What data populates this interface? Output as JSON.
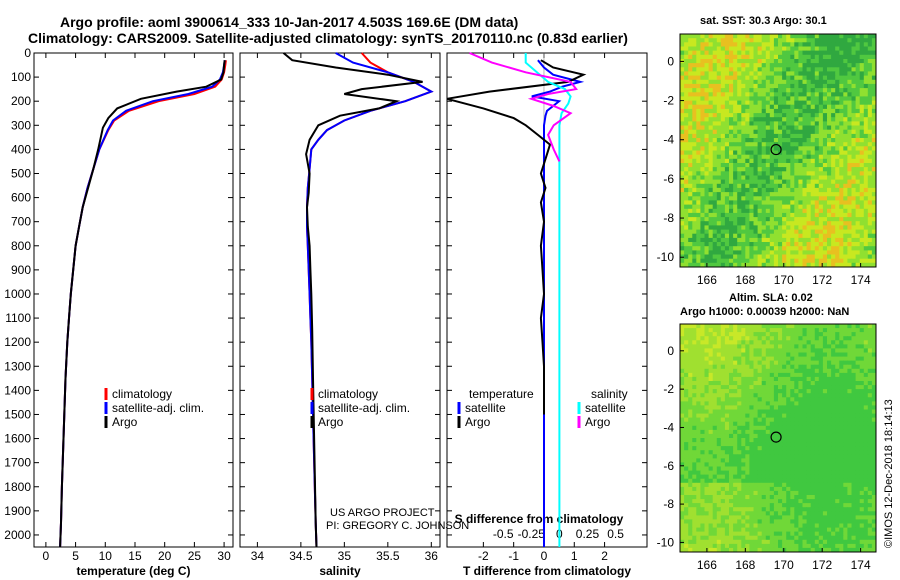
{
  "header": {
    "title_line1": "Argo profile: aoml 3900614_333 10-Jan-2017 4.503S 169.6E (DM data)",
    "title_line2": "Climatology: CARS2009. Satellite-adjusted climatology: synTS_20170110.nc (0.83d earlier)"
  },
  "credits": {
    "line1": "US ARGO PROJECT",
    "line2": "PI: GREGORY C. JOHNSON"
  },
  "imos_note": "©IMOS 12-Dec-2018 18:14:13",
  "colors": {
    "climatology": "#ff0000",
    "satellite": "#0000ff",
    "argo": "#000000",
    "sat_sal": "#00ffff",
    "argo_sal": "#ff00ff"
  },
  "chart_data": [
    {
      "type": "line",
      "xlabel": "temperature (deg C)",
      "ylabel": "",
      "xlim": [
        -2,
        31.5
      ],
      "ylim": [
        2050,
        0
      ],
      "xticks": [
        "0",
        "5",
        "10",
        "15",
        "20",
        "25",
        "30"
      ],
      "yticks": [
        "0",
        "100",
        "200",
        "300",
        "400",
        "500",
        "600",
        "700",
        "800",
        "900",
        "1000",
        "1100",
        "1200",
        "1300",
        "1400",
        "1500",
        "1600",
        "1700",
        "1800",
        "1900",
        "2000"
      ],
      "legend": [
        "climatology",
        "satellite-adj. clim.",
        "Argo"
      ],
      "legend_loc": "lower-center",
      "series": [
        {
          "name": "climatology",
          "x": [
            30.3,
            30.2,
            30,
            29.6,
            28.5,
            25,
            19,
            14,
            11.5,
            10.5,
            9,
            8,
            7,
            6.2,
            5.6,
            5,
            4.6,
            4.2,
            3.9,
            3.6,
            3.3,
            3.1,
            2.9,
            2.7,
            2.55,
            2.4
          ],
          "y": [
            30,
            50,
            80,
            110,
            140,
            170,
            200,
            240,
            280,
            320,
            400,
            480,
            560,
            640,
            720,
            800,
            900,
            1000,
            1100,
            1200,
            1350,
            1500,
            1650,
            1800,
            1950,
            2050
          ]
        },
        {
          "name": "satellite-adj. clim.",
          "x": [
            30.1,
            30,
            29.8,
            29.3,
            28,
            24,
            18,
            13.5,
            11.3,
            10.4,
            9,
            8,
            7,
            6.2,
            5.6,
            5,
            4.6,
            4.2,
            3.9,
            3.6,
            3.3,
            3.1,
            2.9,
            2.7,
            2.55,
            2.4
          ],
          "y": [
            30,
            50,
            80,
            110,
            140,
            170,
            200,
            240,
            280,
            320,
            400,
            480,
            560,
            640,
            720,
            800,
            900,
            1000,
            1100,
            1200,
            1350,
            1500,
            1650,
            1800,
            1950,
            2050
          ]
        },
        {
          "name": "Argo",
          "x": [
            30.1,
            30,
            29.9,
            29.5,
            27,
            22,
            16,
            12,
            10.5,
            9.6,
            8.8,
            8,
            7.1,
            6.2,
            5.6,
            5,
            4.6,
            4.2,
            3.9,
            3.6,
            3.3,
            3.1,
            2.9,
            2.7,
            2.55,
            2.4
          ],
          "y": [
            30,
            50,
            80,
            110,
            140,
            160,
            190,
            230,
            270,
            310,
            400,
            480,
            560,
            640,
            720,
            800,
            900,
            1000,
            1100,
            1200,
            1350,
            1500,
            1650,
            1800,
            1950,
            2050
          ]
        }
      ]
    },
    {
      "type": "line",
      "xlabel": "salinity",
      "ylabel": "",
      "xlim": [
        33.8,
        36.1
      ],
      "ylim": [
        2050,
        0
      ],
      "xticks": [
        "34",
        "34.5",
        "35",
        "35.5",
        "36"
      ],
      "legend": [
        "climatology",
        "satellite-adj. clim.",
        "Argo"
      ],
      "legend_loc": "lower-center",
      "series": [
        {
          "name": "climatology",
          "x": [
            35.2,
            35.3,
            35.5,
            35.8,
            36,
            35.7,
            35.3,
            35,
            34.8,
            34.7,
            34.62,
            34.6,
            34.58,
            34.57,
            34.57,
            34.58,
            34.59,
            34.6,
            34.61,
            34.62,
            34.63,
            34.64,
            34.65,
            34.66,
            34.67,
            34.68
          ],
          "y": [
            0,
            40,
            80,
            120,
            160,
            200,
            240,
            280,
            320,
            360,
            400,
            480,
            560,
            640,
            720,
            800,
            900,
            1000,
            1100,
            1200,
            1350,
            1500,
            1650,
            1800,
            1950,
            2050
          ]
        },
        {
          "name": "satellite-adj. clim.",
          "x": [
            34.9,
            35.1,
            35.5,
            35.8,
            36,
            35.7,
            35.3,
            35,
            34.8,
            34.7,
            34.62,
            34.6,
            34.58,
            34.57,
            34.57,
            34.58,
            34.59,
            34.6,
            34.61,
            34.62,
            34.63,
            34.64,
            34.65,
            34.66,
            34.67,
            34.68
          ],
          "y": [
            0,
            40,
            80,
            120,
            160,
            200,
            240,
            280,
            320,
            360,
            400,
            480,
            560,
            640,
            720,
            800,
            900,
            1000,
            1100,
            1200,
            1350,
            1500,
            1650,
            1800,
            1950,
            2050
          ]
        },
        {
          "name": "Argo",
          "x": [
            34.3,
            34.4,
            34.9,
            35.5,
            35.9,
            35.2,
            35,
            35.6,
            35.4,
            34.95,
            34.7,
            34.6,
            34.56,
            34.6,
            34.59,
            34.57,
            34.58,
            34.6,
            34.61,
            34.62,
            34.63,
            34.64,
            34.65,
            34.66,
            34.67,
            34.68
          ],
          "y": [
            0,
            30,
            60,
            90,
            120,
            150,
            170,
            200,
            230,
            260,
            300,
            360,
            420,
            500,
            580,
            640,
            720,
            800,
            900,
            1000,
            1150,
            1350,
            1550,
            1750,
            1950,
            2050
          ]
        }
      ]
    },
    {
      "type": "line",
      "xlabel": "T difference from climatology",
      "xlim": [
        -3.2,
        3.4
      ],
      "ylim": [
        2050,
        0
      ],
      "xticks": [
        "-2",
        "-1",
        "0",
        "1",
        "2"
      ],
      "xlabel_top": "S difference from climatology",
      "xlim_top": [
        -1.0,
        0.78
      ],
      "xticks_top": [
        "-0.5",
        "-0.25",
        "0",
        "0.25",
        "0.5"
      ],
      "legend": [
        "temperature",
        "satellite",
        "Argo",
        "salinity",
        "satellite",
        "Argo"
      ],
      "legend_loc": "lower-center",
      "series": [
        {
          "name": "temperature satellite",
          "axis": "T",
          "x": [
            -0.2,
            0,
            0.3,
            1.2,
            0.6,
            0.2,
            -0.4,
            0.5,
            0.3,
            0.1,
            0.05,
            0,
            0,
            0,
            0,
            0,
            0,
            0,
            0,
            0,
            0,
            0,
            0,
            0,
            0
          ],
          "y": [
            30,
            60,
            90,
            120,
            140,
            160,
            180,
            200,
            220,
            240,
            260,
            300,
            400,
            500,
            600,
            800,
            1000,
            1200,
            1400,
            1500,
            1600,
            1700,
            1800,
            1900,
            2050
          ]
        },
        {
          "name": "temperature Argo",
          "axis": "T",
          "x": [
            -0.1,
            0.3,
            1.3,
            0.8,
            -1.8,
            -3.2,
            -2,
            -1,
            -0.6,
            -0.2,
            0.2,
            0.1,
            -0.1,
            0.05,
            -0.1,
            0,
            -0.1,
            -0.05,
            0,
            -0.1,
            -0.05,
            0,
            0
          ],
          "y": [
            30,
            60,
            90,
            120,
            160,
            190,
            230,
            270,
            300,
            340,
            380,
            420,
            500,
            560,
            620,
            700,
            800,
            900,
            1000,
            1100,
            1200,
            1300,
            1500
          ]
        },
        {
          "name": "salinity satellite",
          "axis": "S",
          "x": [
            -0.3,
            -0.3,
            -0.2,
            -0.1,
            0.05,
            0.1,
            0.08,
            0.02,
            0,
            0,
            0,
            0,
            0,
            0,
            0,
            0,
            0,
            0,
            0,
            0,
            0
          ],
          "y": [
            0,
            40,
            80,
            120,
            150,
            180,
            210,
            250,
            300,
            350,
            400,
            500,
            600,
            800,
            1000,
            1200,
            1400,
            1600,
            1800,
            1950,
            2050
          ]
        },
        {
          "name": "salinity Argo",
          "axis": "S",
          "x": [
            -0.8,
            -0.6,
            -0.3,
            0.1,
            0.15,
            -0.1,
            -0.25,
            -0.05,
            0.1,
            -0.05,
            -0.1,
            -0.05,
            0
          ],
          "y": [
            0,
            40,
            80,
            120,
            150,
            170,
            190,
            220,
            250,
            300,
            340,
            400,
            450
          ]
        }
      ]
    },
    {
      "type": "heatmap",
      "title": "sat. SST: 30.3 Argo: 30.1",
      "xlim": [
        164.6,
        174.8
      ],
      "ylim": [
        -10.5,
        1.4
      ],
      "xticks": [
        "166",
        "168",
        "170",
        "172",
        "174"
      ],
      "yticks": [
        "0",
        "-2",
        "-4",
        "-6",
        "-8",
        "-10"
      ],
      "marker": {
        "lon": 169.6,
        "lat": -4.503
      }
    },
    {
      "type": "heatmap",
      "title": "Altim. SLA: 0.02",
      "subtitle": "Argo h1000: 0.00039 h2000: NaN",
      "xlim": [
        164.6,
        174.8
      ],
      "ylim": [
        -10.5,
        1.4
      ],
      "xticks": [
        "166",
        "168",
        "170",
        "172",
        "174"
      ],
      "yticks": [
        "0",
        "-2",
        "-4",
        "-6",
        "-8",
        "-10"
      ],
      "marker": {
        "lon": 169.6,
        "lat": -4.503
      }
    }
  ]
}
